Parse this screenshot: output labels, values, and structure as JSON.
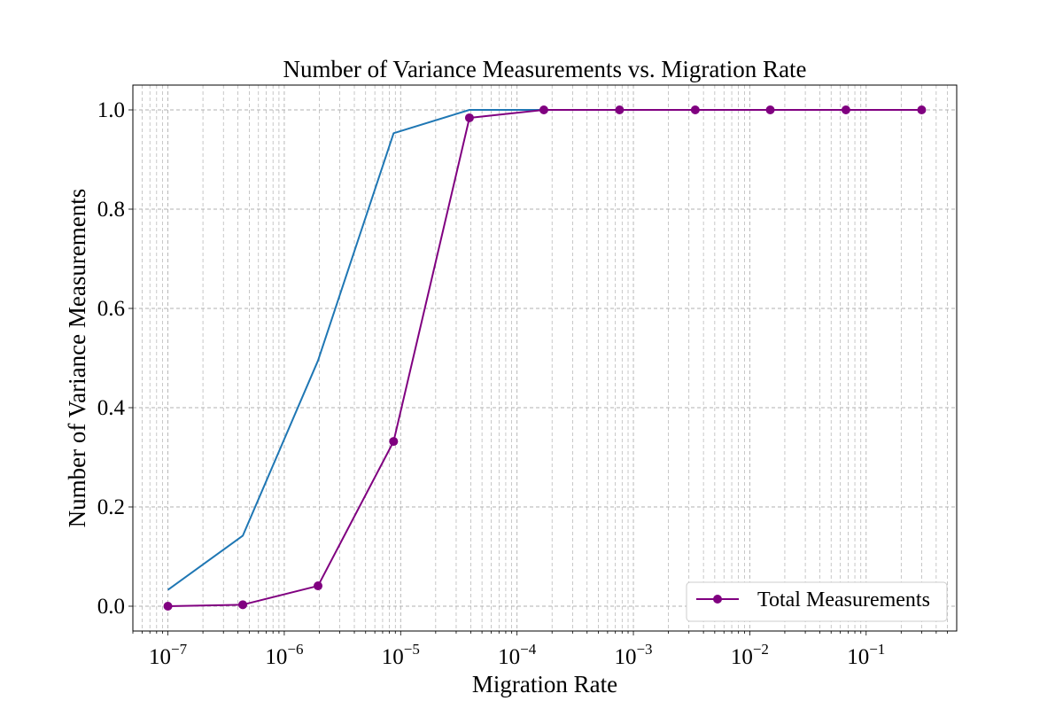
{
  "chart_data": {
    "type": "line",
    "title": "Number of Variance Measurements vs. Migration Rate",
    "xlabel": "Migration Rate",
    "ylabel": "Number of Variance Measurements",
    "x_scale": "log",
    "xlim": [
      5e-08,
      0.6
    ],
    "ylim": [
      -0.05,
      1.05
    ],
    "x_ticks": [
      {
        "base": "10",
        "exp": "−7",
        "value": 1e-07
      },
      {
        "base": "10",
        "exp": "−6",
        "value": 1e-06
      },
      {
        "base": "10",
        "exp": "−5",
        "value": 1e-05
      },
      {
        "base": "10",
        "exp": "−4",
        "value": 0.0001
      },
      {
        "base": "10",
        "exp": "−3",
        "value": 0.001
      },
      {
        "base": "10",
        "exp": "−2",
        "value": 0.01
      },
      {
        "base": "10",
        "exp": "−1",
        "value": 0.1
      }
    ],
    "y_ticks": [
      {
        "label": "0.0",
        "value": 0.0
      },
      {
        "label": "0.2",
        "value": 0.2
      },
      {
        "label": "0.4",
        "value": 0.4
      },
      {
        "label": "0.6",
        "value": 0.6
      },
      {
        "label": "0.8",
        "value": 0.8
      },
      {
        "label": "1.0",
        "value": 1.0
      }
    ],
    "grid": true,
    "legend_position": "lower-right",
    "series": [
      {
        "name": "",
        "color": "#1f77b4",
        "marker": "none",
        "x": [
          1e-07,
          4.4e-07,
          1.95e-06,
          8.7e-06,
          3.9e-05,
          0.00017,
          0.00076,
          0.0034,
          0.015,
          0.067,
          0.3
        ],
        "y": [
          0.033,
          0.142,
          0.495,
          0.953,
          1.0,
          1.0,
          1.0,
          1.0,
          1.0,
          1.0,
          1.0
        ]
      },
      {
        "name": "Total Measurements",
        "color": "#800080",
        "marker": "circle",
        "x": [
          1e-07,
          4.4e-07,
          1.95e-06,
          8.7e-06,
          3.9e-05,
          0.00017,
          0.00076,
          0.0034,
          0.015,
          0.067,
          0.3
        ],
        "y": [
          0.0,
          0.003,
          0.041,
          0.332,
          0.984,
          1.0,
          1.0,
          1.0,
          1.0,
          1.0,
          1.0
        ]
      }
    ]
  }
}
